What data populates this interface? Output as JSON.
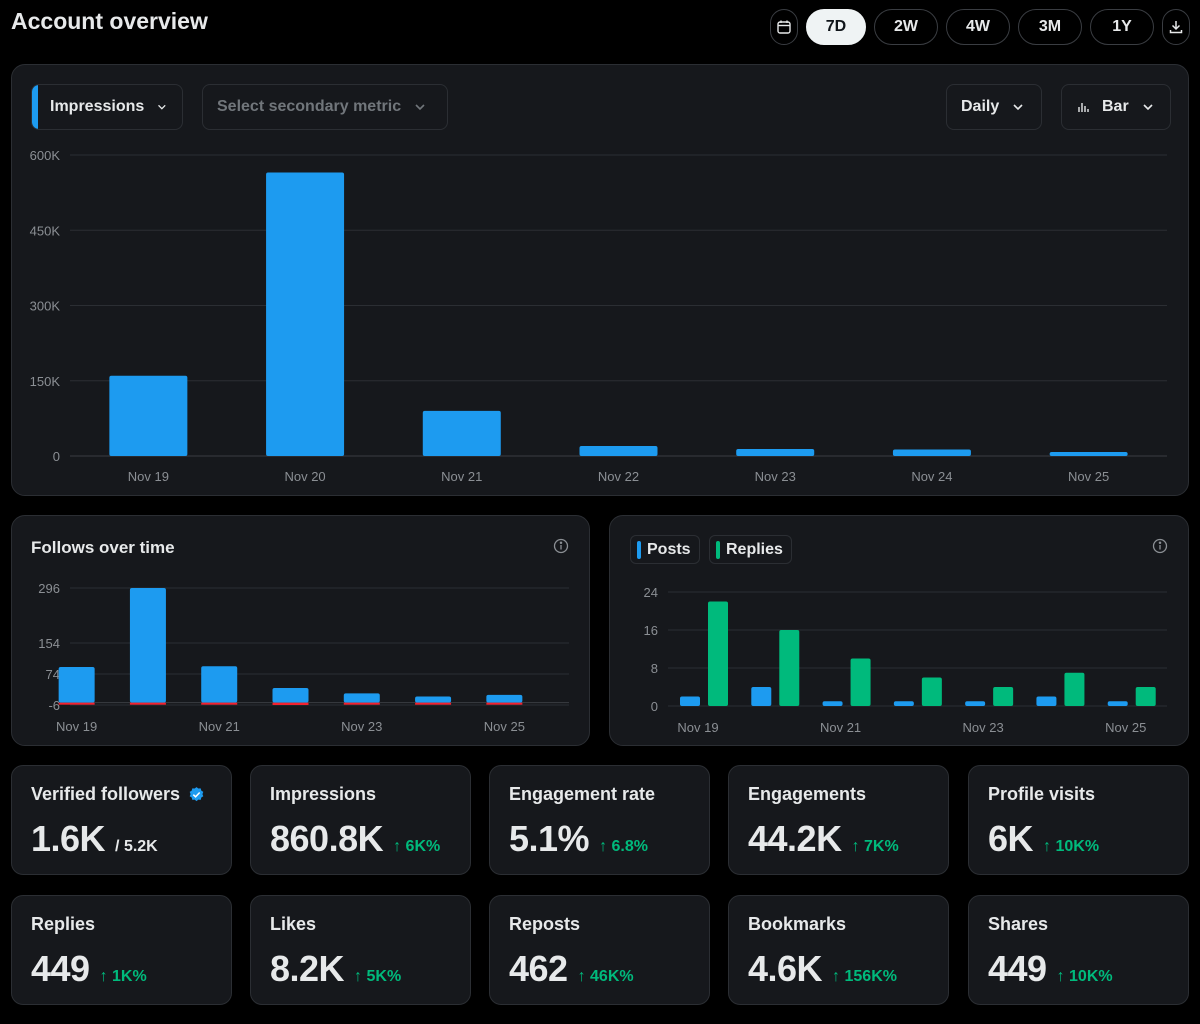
{
  "header": {
    "title": "Account overview"
  },
  "range": {
    "options": [
      "7D",
      "2W",
      "4W",
      "3M",
      "1Y"
    ],
    "selected": "7D"
  },
  "main_chart": {
    "primary_metric": "Impressions",
    "secondary_metric_placeholder": "Select secondary metric",
    "interval": "Daily",
    "chart_type_label": "Bar",
    "accent_color": "#1d9bf0"
  },
  "follows": {
    "title": "Follows over time"
  },
  "posts_replies": {
    "legend": [
      "Posts",
      "Replies"
    ],
    "colors": [
      "#1d9bf0",
      "#00ba7c"
    ]
  },
  "chart_data": [
    {
      "type": "bar",
      "categories": [
        "Nov 19",
        "Nov 20",
        "Nov 21",
        "Nov 22",
        "Nov 23",
        "Nov 24",
        "Nov 25"
      ],
      "series": [
        {
          "name": "Impressions",
          "values": [
            160000,
            565000,
            90000,
            20000,
            14000,
            13000,
            8000
          ]
        }
      ],
      "yticks": [
        "0",
        "150K",
        "300K",
        "450K",
        "600K"
      ],
      "ylim": [
        0,
        600000
      ],
      "grid": true
    },
    {
      "type": "bar",
      "categories": [
        "Nov 19",
        "Nov 20",
        "Nov 21",
        "Nov 22",
        "Nov 23",
        "Nov 24",
        "Nov 25"
      ],
      "xtick_labels": [
        "Nov 19",
        "Nov 21",
        "Nov 23",
        "Nov 25"
      ],
      "series": [
        {
          "values": [
            92,
            296,
            94,
            38,
            24,
            16,
            20
          ]
        },
        {
          "values": [
            -4,
            -5,
            -2,
            -6,
            -2,
            -1,
            -1
          ]
        }
      ],
      "yticks": [
        "-6",
        "74",
        "154",
        "296"
      ],
      "ylim": [
        -6,
        296
      ],
      "grid": true
    },
    {
      "type": "bar",
      "categories": [
        "Nov 19",
        "Nov 20",
        "Nov 21",
        "Nov 22",
        "Nov 23",
        "Nov 24",
        "Nov 25"
      ],
      "xtick_labels": [
        "Nov 19",
        "Nov 21",
        "Nov 23",
        "Nov 25"
      ],
      "series": [
        {
          "name": "Posts",
          "values": [
            2,
            4,
            1,
            1,
            1,
            2,
            1
          ]
        },
        {
          "name": "Replies",
          "values": [
            22,
            16,
            10,
            6,
            4,
            7,
            4
          ]
        }
      ],
      "yticks": [
        "0",
        "8",
        "16",
        "24"
      ],
      "ylim": [
        0,
        24
      ],
      "legend": "top-left",
      "grid": true
    }
  ],
  "stats": [
    {
      "label": "Verified followers",
      "value": "1.6K",
      "sub": "/ 5.2K",
      "delta": ""
    },
    {
      "label": "Impressions",
      "value": "860.8K",
      "delta": "↑ 6K%"
    },
    {
      "label": "Engagement rate",
      "value": "5.1%",
      "delta": "↑ 6.8%"
    },
    {
      "label": "Engagements",
      "value": "44.2K",
      "delta": "↑ 7K%"
    },
    {
      "label": "Profile visits",
      "value": "6K",
      "delta": "↑ 10K%"
    },
    {
      "label": "Replies",
      "value": "449",
      "delta": "↑ 1K%"
    },
    {
      "label": "Likes",
      "value": "8.2K",
      "delta": "↑ 5K%"
    },
    {
      "label": "Reposts",
      "value": "462",
      "delta": "↑ 46K%"
    },
    {
      "label": "Bookmarks",
      "value": "4.6K",
      "delta": "↑ 156K%"
    },
    {
      "label": "Shares",
      "value": "449",
      "delta": "↑ 10K%"
    }
  ]
}
